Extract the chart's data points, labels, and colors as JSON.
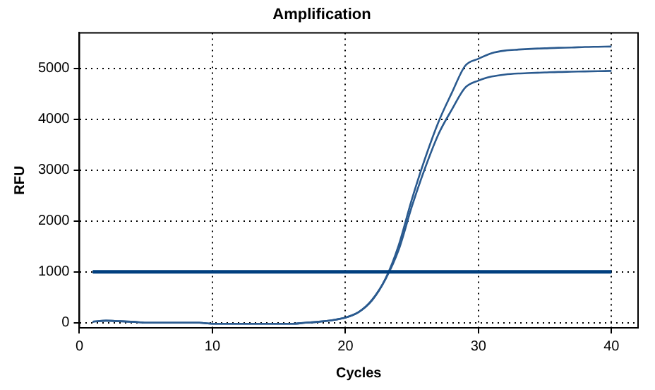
{
  "chart_data": {
    "type": "line",
    "title": "Amplification",
    "xlabel": "Cycles",
    "ylabel": "RFU",
    "x": [
      1,
      2,
      3,
      4,
      5,
      6,
      7,
      8,
      9,
      10,
      11,
      12,
      13,
      14,
      15,
      16,
      17,
      18,
      19,
      20,
      21,
      22,
      23,
      24,
      25,
      26,
      27,
      28,
      29,
      30,
      31,
      32,
      33,
      34,
      35,
      36,
      37,
      38,
      39,
      40
    ],
    "xlim": [
      0,
      42
    ],
    "xticks": [
      0,
      10,
      20,
      30,
      40
    ],
    "ylim": [
      -100,
      5700
    ],
    "yticks": [
      0,
      1000,
      2000,
      3000,
      4000,
      5000
    ],
    "grid": true,
    "legend": false,
    "marker": "none",
    "line_style": "solid",
    "series": [
      {
        "color": "#2a5a8f",
        "values": [
          20,
          40,
          30,
          20,
          0,
          0,
          0,
          0,
          0,
          -20,
          -20,
          -20,
          -20,
          -20,
          -20,
          -20,
          0,
          20,
          50,
          100,
          210,
          450,
          860,
          1520,
          2430,
          3240,
          3950,
          4520,
          5050,
          5190,
          5300,
          5350,
          5370,
          5385,
          5395,
          5405,
          5410,
          5420,
          5425,
          5430
        ]
      },
      {
        "color": "#2a5a8f",
        "values": [
          20,
          40,
          30,
          20,
          0,
          0,
          0,
          0,
          0,
          -20,
          -20,
          -20,
          -20,
          -20,
          -20,
          -20,
          0,
          20,
          50,
          100,
          210,
          440,
          850,
          1430,
          2290,
          3050,
          3710,
          4190,
          4620,
          4760,
          4840,
          4880,
          4900,
          4910,
          4920,
          4930,
          4935,
          4940,
          4945,
          4950
        ]
      }
    ],
    "ref_lines": [
      {
        "axis": "y",
        "value": 1000,
        "color": "#003f7f"
      }
    ]
  }
}
